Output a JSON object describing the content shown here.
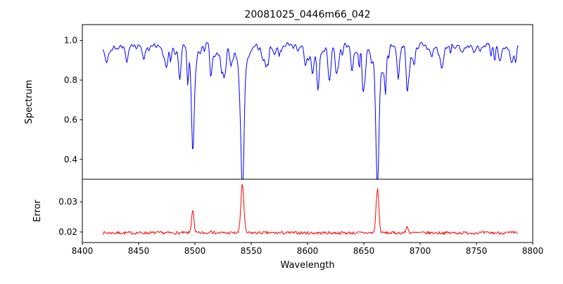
{
  "figure": {
    "background": "#ffffff"
  },
  "chart_data": {
    "type": "line",
    "title": "20081025_0446m66_042",
    "xlabel": "Wavelength",
    "x_range": [
      8400,
      8800
    ],
    "x_ticks": [
      8400,
      8450,
      8500,
      8550,
      8600,
      8650,
      8700,
      8750,
      8800
    ],
    "x_tick_labels": [
      "8400",
      "8450",
      "8500",
      "8550",
      "8600",
      "8650",
      "8700",
      "8750",
      "8800"
    ],
    "data_x_range": [
      8418,
      8787
    ],
    "sample_step": 0.7,
    "legend": "none",
    "grid": false,
    "panels": [
      {
        "name": "spectrum",
        "ylabel": "Spectrum",
        "line_color": "#0000ff",
        "ylim": [
          0.3,
          1.08
        ],
        "y_ticks": [
          0.4,
          0.6,
          0.8,
          1.0
        ],
        "y_tick_labels": [
          "0.4",
          "0.6",
          "0.8",
          "1.0"
        ],
        "continuum": 0.972,
        "noise_amplitude": 0.022,
        "noise_seed": 42,
        "weak_line_count": 95,
        "weak_line_depth_max": 0.16,
        "absorption_lines": [
          {
            "center": 8498.0,
            "depth": 0.4,
            "sigma": 1.1
          },
          {
            "center": 8498.0,
            "depth": 0.07,
            "sigma": 3.0
          },
          {
            "center": 8514.2,
            "depth": 0.15,
            "sigma": 0.9
          },
          {
            "center": 8542.1,
            "depth": 0.52,
            "sigma": 1.4
          },
          {
            "center": 8542.1,
            "depth": 0.12,
            "sigma": 4.5
          },
          {
            "center": 8662.1,
            "depth": 0.51,
            "sigma": 1.3
          },
          {
            "center": 8662.1,
            "depth": 0.12,
            "sigma": 4.2
          },
          {
            "center": 8688.6,
            "depth": 0.24,
            "sigma": 1.0
          }
        ]
      },
      {
        "name": "error",
        "ylabel": "Error",
        "line_color": "#ff0000",
        "ylim": [
          0.0165,
          0.0375
        ],
        "y_ticks": [
          0.02,
          0.03
        ],
        "y_tick_labels": [
          "0.02",
          "0.03"
        ],
        "baseline": 0.0197,
        "noise_amplitude": 0.0005,
        "noise_seed": 7,
        "spikes": [
          {
            "center": 8498.0,
            "amp": 0.0078,
            "sigma": 1.0
          },
          {
            "center": 8514.2,
            "amp": 0.0012,
            "sigma": 0.8
          },
          {
            "center": 8542.1,
            "amp": 0.0163,
            "sigma": 1.3
          },
          {
            "center": 8662.1,
            "amp": 0.0148,
            "sigma": 1.2
          },
          {
            "center": 8688.6,
            "amp": 0.0022,
            "sigma": 0.9
          }
        ]
      }
    ]
  }
}
